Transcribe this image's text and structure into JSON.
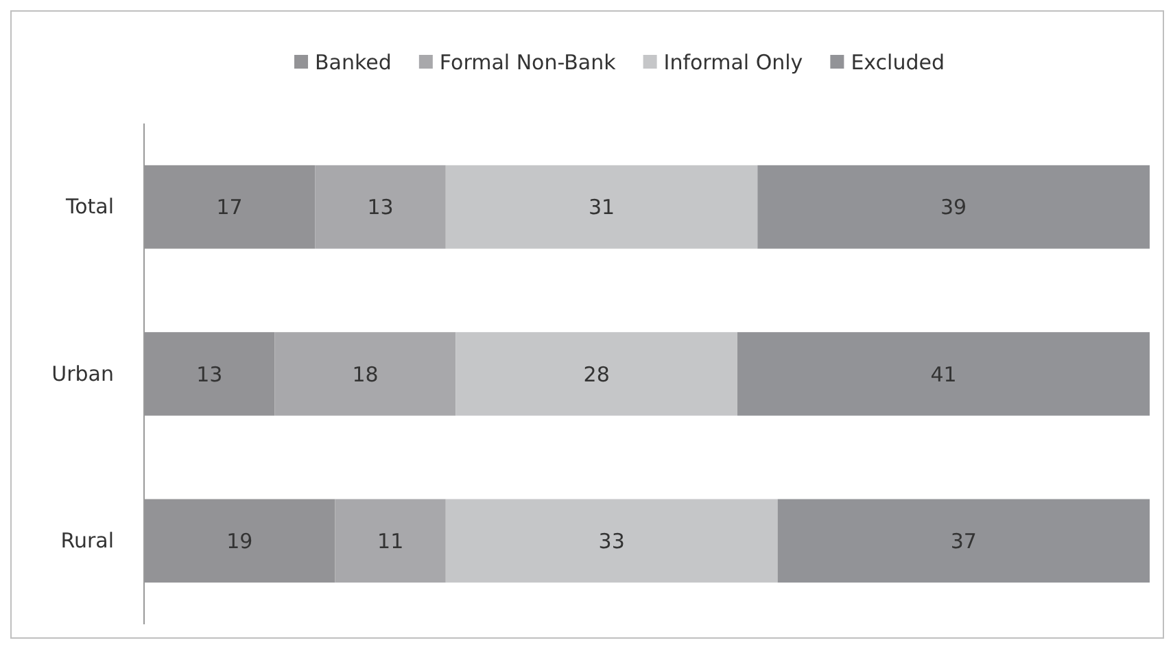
{
  "chart_data": {
    "type": "bar",
    "orientation": "horizontal",
    "stacked": true,
    "categories": [
      "Total",
      "Urban",
      "Rural"
    ],
    "series": [
      {
        "name": "Banked",
        "color": "#939396",
        "values": [
          17,
          13,
          19
        ]
      },
      {
        "name": "Formal Non-Bank",
        "color": "#a8a8ab",
        "values": [
          13,
          18,
          11
        ]
      },
      {
        "name": "Informal Only",
        "color": "#c5c6c8",
        "values": [
          31,
          28,
          33
        ]
      },
      {
        "name": "Excluded",
        "color": "#929397",
        "values": [
          39,
          41,
          37
        ]
      }
    ],
    "xlim": [
      0,
      100
    ],
    "tick_labels": "y",
    "data_labels": true,
    "legend": "top"
  }
}
